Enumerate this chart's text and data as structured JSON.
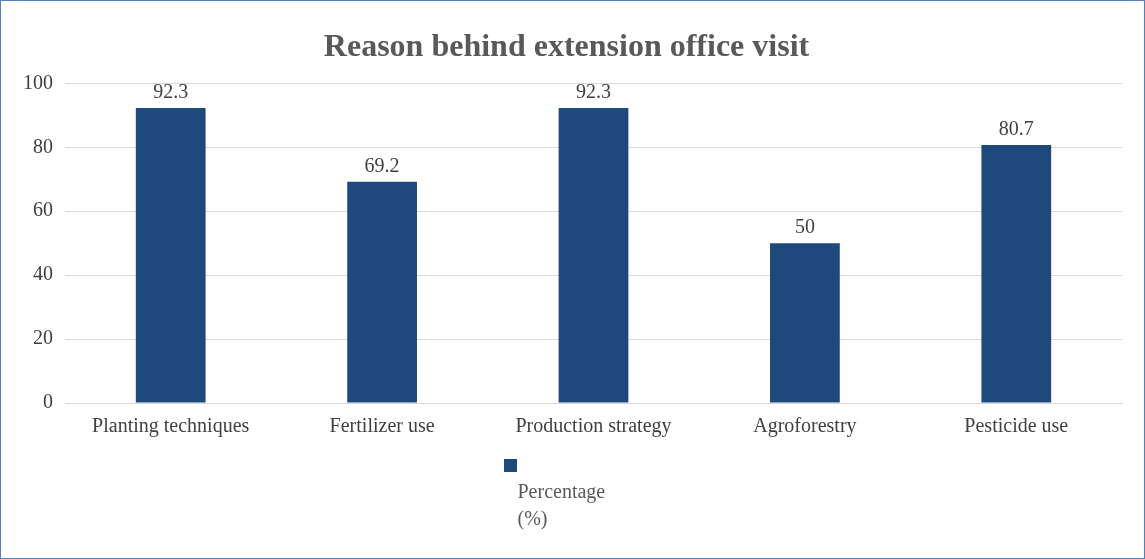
{
  "chart_data": {
    "type": "bar",
    "title": "Reason behind extension office visit",
    "categories": [
      "Planting techniques",
      "Fertilizer use",
      "Production strategy",
      "Agroforestry",
      "Pesticide use"
    ],
    "series": [
      {
        "name": "Percentage (%)",
        "color": "#1f497d",
        "values": [
          92.3,
          69.2,
          92.3,
          50,
          80.7
        ]
      }
    ],
    "ylim": [
      0,
      100
    ],
    "yticks": [
      0,
      20,
      40,
      60,
      80,
      100
    ],
    "grid": "y",
    "data_labels": true,
    "legend": "bottom"
  }
}
